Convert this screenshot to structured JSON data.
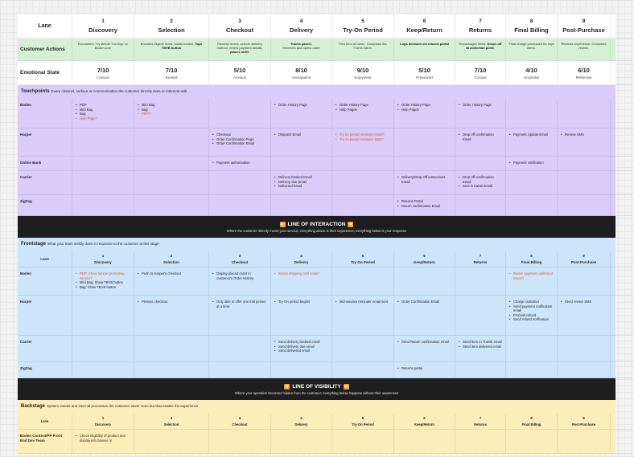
{
  "header": {
    "lane_label": "Lane",
    "steps": [
      {
        "num": "1",
        "name": "Discovery"
      },
      {
        "num": "2",
        "name": "Selection"
      },
      {
        "num": "3",
        "name": "Checkout"
      },
      {
        "num": "4",
        "name": "Delivery"
      },
      {
        "num": "5",
        "name": "Try-On Period"
      },
      {
        "num": "6",
        "name": "Keep/Return"
      },
      {
        "num": "7",
        "name": "Returns"
      },
      {
        "num": "8",
        "name": "Final Billing"
      },
      {
        "num": "9",
        "name": "Post-Purchase"
      }
    ]
  },
  "customer_actions": {
    "label": "Customer Actions",
    "cells": [
      {
        "text": "Encounters 'Try Before You Buy' on Boden.com",
        "bold": ""
      },
      {
        "text": "Browses eligible items, builds basket.",
        "bold": "Taps TBYB button"
      },
      {
        "text": "Reviews terms, selects delivery method, enters payment details,",
        "bold": "places order"
      },
      {
        "text": "",
        "bold": "Tracks parcel.",
        "after": "Receives and opens order"
      },
      {
        "text": "Tries item at home. Compares fits. Forms intent.",
        "bold": ""
      },
      {
        "text": "",
        "bold": "Logs decision via returns portal"
      },
      {
        "text": "Repackages items.",
        "bold": "Drops off at collection point."
      },
      {
        "text": "Final charge processed for kept items.",
        "bold": ""
      },
      {
        "text": "Reviews experience. Considers repeat.",
        "bold": ""
      }
    ]
  },
  "emotional_state": {
    "label": "Emotional State",
    "cells": [
      {
        "score": "7/10",
        "feel": "Curious"
      },
      {
        "score": "7/10",
        "feel": "Excited"
      },
      {
        "score": "5/10",
        "feel": "Anxious"
      },
      {
        "score": "8/10",
        "feel": "Anticipation"
      },
      {
        "score": "9/10",
        "feel": "Enjoyment"
      },
      {
        "score": "5/10",
        "feel": "Pressured"
      },
      {
        "score": "7/10",
        "feel": "Curious"
      },
      {
        "score": "4/10",
        "feel": "Uncertain"
      },
      {
        "score": "6/10",
        "feel": "Reflective"
      }
    ]
  },
  "touchpoints": {
    "title": "Touchpoints",
    "subtitle": "Every channel, surface or communication the customer directly sees or interacts with",
    "rows": [
      {
        "label": "Boden",
        "cells": [
          [
            {
              "t": "PDP"
            },
            {
              "t": "Mini Bag"
            },
            {
              "t": "Bag"
            },
            {
              "t": "Help Page?",
              "warn": true
            }
          ],
          [
            {
              "t": "Mini Bag"
            },
            {
              "t": "Bag"
            },
            {
              "t": "PDP?",
              "warn": true
            }
          ],
          [],
          [
            {
              "t": "Order History Page"
            }
          ],
          [
            {
              "t": "Order History Page"
            },
            {
              "t": "Help Pages"
            }
          ],
          [
            {
              "t": "Order History Page"
            },
            {
              "t": "Help Pages"
            }
          ],
          [
            {
              "t": "Order History Page"
            }
          ],
          [],
          []
        ]
      },
      {
        "label": "Harper",
        "cells": [
          [],
          [],
          [
            {
              "t": "Checkout"
            },
            {
              "t": "Order Confirmation Page"
            },
            {
              "t": "Order Confirmation Email"
            }
          ],
          [
            {
              "t": "Dispatch Email"
            }
          ],
          [
            {
              "t": "Try on period reminder email?",
              "warn": true
            },
            {
              "t": "Try on period reminder SMS?",
              "warn": true
            }
          ],
          [],
          [
            {
              "t": "Drop off confirmation Email"
            }
          ],
          [
            {
              "t": "Payment Update Email"
            }
          ],
          [
            {
              "t": "Review SMS"
            }
          ]
        ]
      },
      {
        "label": "Online Bank",
        "cells": [
          [],
          [],
          [
            {
              "t": "Payment authorisation"
            }
          ],
          [],
          [],
          [],
          [],
          [
            {
              "t": "Payment notification"
            }
          ],
          []
        ]
      },
      {
        "label": "Carrier",
        "cells": [
          [],
          [],
          [],
          [
            {
              "t": "Delivery booked Email"
            },
            {
              "t": "Delivery due Email"
            },
            {
              "t": "Delivered Email"
            }
          ],
          [],
          [
            {
              "t": "Delivery/Drop Off instructions Email"
            }
          ],
          [
            {
              "t": "Drop off confirmation Email"
            },
            {
              "t": "Sent in transit Email"
            }
          ],
          [],
          []
        ]
      },
      {
        "label": "ZigZag",
        "cells": [
          [],
          [],
          [],
          [],
          [],
          [
            {
              "t": "Returns Portal"
            },
            {
              "t": "Return confirmation Email"
            }
          ],
          [],
          [],
          []
        ]
      }
    ]
  },
  "line_interaction": {
    "title": "LINE OF INTERACTION",
    "subtitle": "Where the customer directly meets your service; everything above is their experience, everything below is your response"
  },
  "frontstage": {
    "title": "Frontstage",
    "subtitle": "What your team visibly does in response to the customer at this stage",
    "lane_label": "Lane",
    "rows": [
      {
        "label": "Boden",
        "cells": [
          [
            {
              "t": "PDP: Show banner promoting service?",
              "warn": true
            },
            {
              "t": "Mini Bag: Show TBYB button"
            },
            {
              "t": "Bag: Show TBYB button"
            }
          ],
          [
            {
              "t": "Push to Harper's checkout"
            }
          ],
          [
            {
              "t": "Display placed order in customer's Order History"
            }
          ],
          [
            {
              "t": "Boden shipping conf email?",
              "warn": true
            }
          ],
          [],
          [],
          [],
          [
            {
              "t": "Boden payment confirmed Email?",
              "warn": true
            }
          ],
          []
        ]
      },
      {
        "label": "Harper",
        "cells": [
          [],
          [
            {
              "t": "Present checkout"
            }
          ],
          [
            {
              "t": "Only able to offer one trial period at a time."
            }
          ],
          [
            {
              "t": "Try-On period begins"
            }
          ],
          [
            {
              "t": "Mid-window reminder email sent"
            }
          ],
          [
            {
              "t": "Order Confirmation Email"
            }
          ],
          [],
          [
            {
              "t": "Charge customer"
            },
            {
              "t": "Send payment notification email"
            },
            {
              "t": "Process refund"
            },
            {
              "t": "Send refund notification"
            }
          ],
          [
            {
              "t": "Send review SMS"
            }
          ]
        ]
      },
      {
        "label": "Carrier",
        "cells": [
          [],
          [],
          [],
          [
            {
              "t": "Send delivery booked email"
            },
            {
              "t": "Send delivery due email"
            },
            {
              "t": "Send delivered email"
            }
          ],
          [],
          [
            {
              "t": "Send Return confirmation email"
            }
          ],
          [
            {
              "t": "Send Item In Transit email"
            },
            {
              "t": "Send item delivered email"
            }
          ],
          [],
          []
        ]
      },
      {
        "label": "ZigZag",
        "cells": [
          [],
          [],
          [],
          [],
          [],
          [
            {
              "t": "Returns portal"
            }
          ],
          [],
          [],
          []
        ]
      }
    ]
  },
  "line_visibility": {
    "title": "LINE OF VISIBILITY",
    "subtitle": "Where your operation becomes hidden from the customer; everything below happens without their awareness"
  },
  "backstage": {
    "title": "Backstage",
    "subtitle": "System events and internal processes the customer never sees but that enable the experience",
    "lane_label": "Lane",
    "rows": [
      {
        "label": "Boden Content/PP Front End Dev Team",
        "cells": [
          [
            {
              "t": "Check eligibility of product and display info banner or"
            }
          ],
          [],
          [],
          [],
          [],
          [],
          [],
          [],
          []
        ]
      }
    ]
  },
  "colors": {
    "actions_bg": "#d6f0d6",
    "touchpoints_bg": "#d9ccfa",
    "frontstage_bg": "#cde5fa",
    "backstage_bg": "#fdeeb9",
    "line_bg": "#1e1e1e",
    "warn_text": "#e0562b",
    "line_icon": "#f0a43a"
  }
}
